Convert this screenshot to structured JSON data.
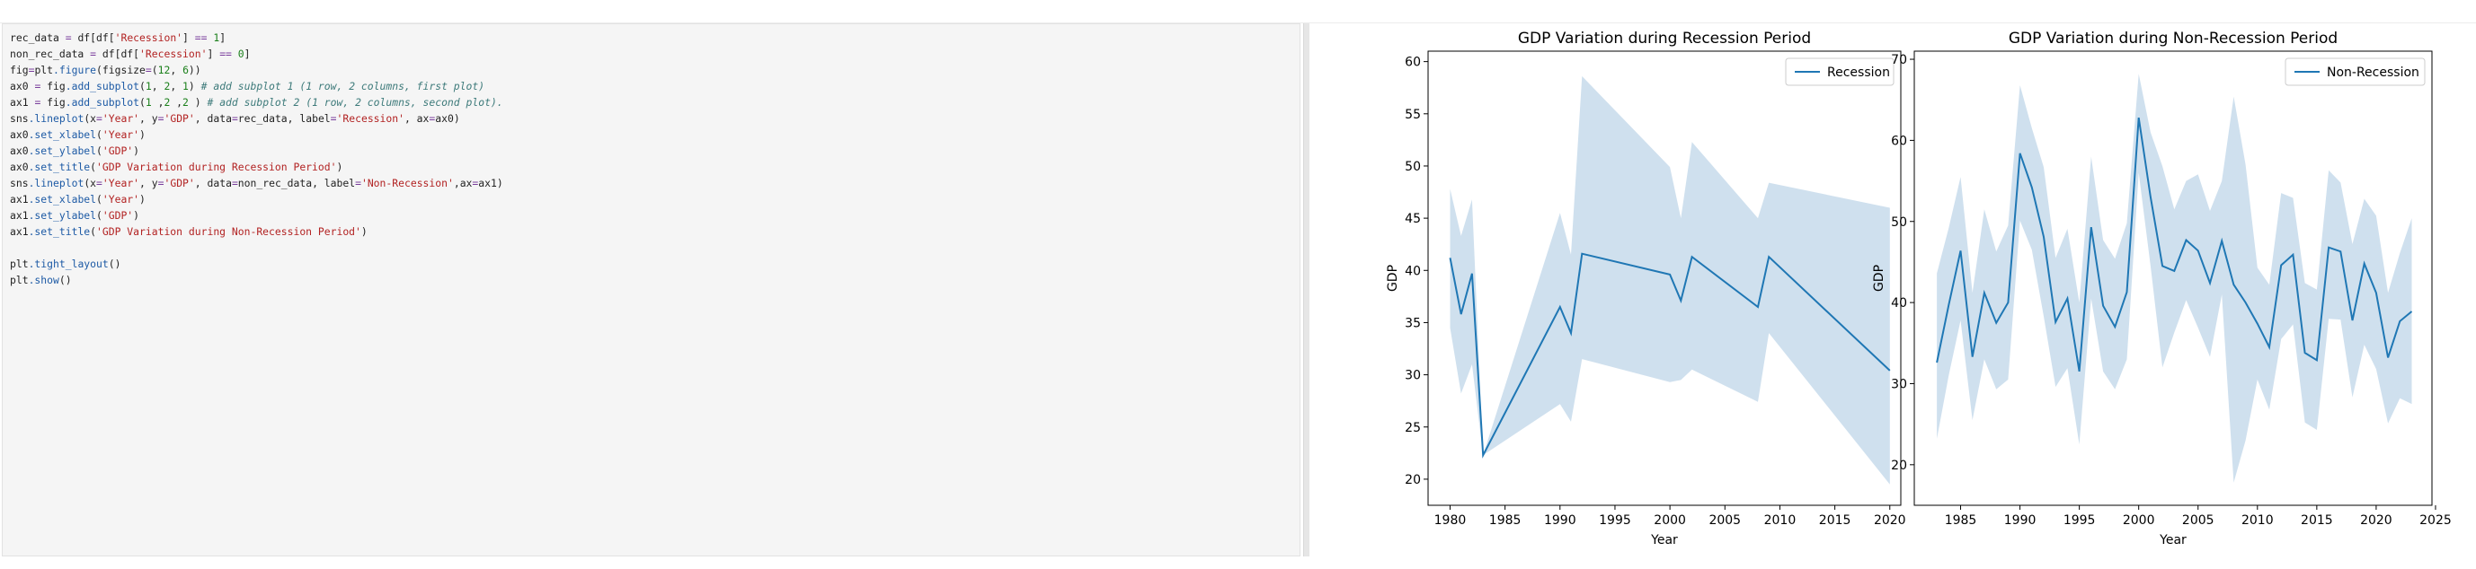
{
  "code": {
    "lines": [
      [
        {
          "t": "rec_data "
        },
        {
          "t": "=",
          "c": "tk-op"
        },
        {
          "t": " df[df["
        },
        {
          "t": "'Recession'",
          "c": "tk-str"
        },
        {
          "t": "] "
        },
        {
          "t": "==",
          "c": "tk-op"
        },
        {
          "t": " "
        },
        {
          "t": "1",
          "c": "tk-num"
        },
        {
          "t": "]"
        }
      ],
      [
        {
          "t": "non_rec_data "
        },
        {
          "t": "=",
          "c": "tk-op"
        },
        {
          "t": " df[df["
        },
        {
          "t": "'Recession'",
          "c": "tk-str"
        },
        {
          "t": "] "
        },
        {
          "t": "==",
          "c": "tk-op"
        },
        {
          "t": " "
        },
        {
          "t": "0",
          "c": "tk-num"
        },
        {
          "t": "]"
        }
      ],
      [
        {
          "t": "fig"
        },
        {
          "t": "=",
          "c": "tk-op"
        },
        {
          "t": "plt"
        },
        {
          "t": ".figure",
          "c": "tk-fn"
        },
        {
          "t": "(figsize"
        },
        {
          "t": "=",
          "c": "tk-op"
        },
        {
          "t": "("
        },
        {
          "t": "12",
          "c": "tk-num"
        },
        {
          "t": ", "
        },
        {
          "t": "6",
          "c": "tk-num"
        },
        {
          "t": "))"
        }
      ],
      [
        {
          "t": "ax0 "
        },
        {
          "t": "=",
          "c": "tk-op"
        },
        {
          "t": " fig"
        },
        {
          "t": ".add_subplot",
          "c": "tk-fn"
        },
        {
          "t": "("
        },
        {
          "t": "1",
          "c": "tk-num"
        },
        {
          "t": ", "
        },
        {
          "t": "2",
          "c": "tk-num"
        },
        {
          "t": ", "
        },
        {
          "t": "1",
          "c": "tk-num"
        },
        {
          "t": ") "
        },
        {
          "t": "# add subplot 1 (1 row, 2 columns, first plot)",
          "c": "tk-cmt"
        }
      ],
      [
        {
          "t": "ax1 "
        },
        {
          "t": "=",
          "c": "tk-op"
        },
        {
          "t": " fig"
        },
        {
          "t": ".add_subplot",
          "c": "tk-fn"
        },
        {
          "t": "("
        },
        {
          "t": "1",
          "c": "tk-num"
        },
        {
          "t": " ,"
        },
        {
          "t": "2",
          "c": "tk-num"
        },
        {
          "t": " ,"
        },
        {
          "t": "2",
          "c": "tk-num"
        },
        {
          "t": " ) "
        },
        {
          "t": "# add subplot 2 (1 row, 2 columns, second plot).",
          "c": "tk-cmt"
        }
      ],
      [
        {
          "t": "sns"
        },
        {
          "t": ".lineplot",
          "c": "tk-fn"
        },
        {
          "t": "(x"
        },
        {
          "t": "=",
          "c": "tk-op"
        },
        {
          "t": "'Year'",
          "c": "tk-str"
        },
        {
          "t": ", y"
        },
        {
          "t": "=",
          "c": "tk-op"
        },
        {
          "t": "'GDP'",
          "c": "tk-str"
        },
        {
          "t": ", data"
        },
        {
          "t": "=",
          "c": "tk-op"
        },
        {
          "t": "rec_data, label"
        },
        {
          "t": "=",
          "c": "tk-op"
        },
        {
          "t": "'Recession'",
          "c": "tk-str"
        },
        {
          "t": ", ax"
        },
        {
          "t": "=",
          "c": "tk-op"
        },
        {
          "t": "ax0)"
        }
      ],
      [
        {
          "t": "ax0"
        },
        {
          "t": ".set_xlabel",
          "c": "tk-fn"
        },
        {
          "t": "("
        },
        {
          "t": "'Year'",
          "c": "tk-str"
        },
        {
          "t": ")"
        }
      ],
      [
        {
          "t": "ax0"
        },
        {
          "t": ".set_ylabel",
          "c": "tk-fn"
        },
        {
          "t": "("
        },
        {
          "t": "'GDP'",
          "c": "tk-str"
        },
        {
          "t": ")"
        }
      ],
      [
        {
          "t": "ax0"
        },
        {
          "t": ".set_title",
          "c": "tk-fn"
        },
        {
          "t": "("
        },
        {
          "t": "'GDP Variation during Recession Period'",
          "c": "tk-str"
        },
        {
          "t": ")"
        }
      ],
      [
        {
          "t": "sns"
        },
        {
          "t": ".lineplot",
          "c": "tk-fn"
        },
        {
          "t": "(x"
        },
        {
          "t": "=",
          "c": "tk-op"
        },
        {
          "t": "'Year'",
          "c": "tk-str"
        },
        {
          "t": ", y"
        },
        {
          "t": "=",
          "c": "tk-op"
        },
        {
          "t": "'GDP'",
          "c": "tk-str"
        },
        {
          "t": ", data"
        },
        {
          "t": "=",
          "c": "tk-op"
        },
        {
          "t": "non_rec_data, label"
        },
        {
          "t": "=",
          "c": "tk-op"
        },
        {
          "t": "'Non-Recession'",
          "c": "tk-str"
        },
        {
          "t": ",ax"
        },
        {
          "t": "=",
          "c": "tk-op"
        },
        {
          "t": "ax1)"
        }
      ],
      [
        {
          "t": "ax1"
        },
        {
          "t": ".set_xlabel",
          "c": "tk-fn"
        },
        {
          "t": "("
        },
        {
          "t": "'Year'",
          "c": "tk-str"
        },
        {
          "t": ")"
        }
      ],
      [
        {
          "t": "ax1"
        },
        {
          "t": ".set_ylabel",
          "c": "tk-fn"
        },
        {
          "t": "("
        },
        {
          "t": "'GDP'",
          "c": "tk-str"
        },
        {
          "t": ")"
        }
      ],
      [
        {
          "t": "ax1"
        },
        {
          "t": ".set_title",
          "c": "tk-fn"
        },
        {
          "t": "("
        },
        {
          "t": "'GDP Variation during Non-Recession Period'",
          "c": "tk-str"
        },
        {
          "t": ")"
        }
      ],
      [],
      [
        {
          "t": "plt"
        },
        {
          "t": ".tight_layout",
          "c": "tk-fn"
        },
        {
          "t": "()"
        }
      ],
      [
        {
          "t": "plt"
        },
        {
          "t": ".show",
          "c": "tk-fn"
        },
        {
          "t": "()"
        }
      ]
    ]
  },
  "colors": {
    "line": "#1f77b4",
    "band": "#cfe0ee"
  },
  "chart_data": [
    {
      "type": "line",
      "title": "GDP Variation during Recession Period",
      "xlabel": "Year",
      "ylabel": "GDP",
      "xlim": [
        1978,
        2021
      ],
      "ylim": [
        17.5,
        61
      ],
      "xticks": [
        1980,
        1985,
        1990,
        1995,
        2000,
        2005,
        2010,
        2015,
        2020
      ],
      "yticks": [
        20,
        25,
        30,
        35,
        40,
        45,
        50,
        55,
        60
      ],
      "legend": "top-right",
      "grid": false,
      "series": [
        {
          "name": "Recession",
          "x": [
            1980,
            1981,
            1982,
            1983,
            1990,
            1991,
            1992,
            2000,
            2001,
            2002,
            2008,
            2009,
            2020
          ],
          "y": [
            41.2,
            35.8,
            39.7,
            22.3,
            36.5,
            34.0,
            41.6,
            39.6,
            37.1,
            41.3,
            36.5,
            41.3,
            30.4
          ],
          "lower": [
            34.5,
            28.2,
            31.0,
            22.3,
            27.2,
            25.5,
            31.5,
            29.3,
            29.5,
            30.5,
            27.4,
            34.0,
            19.5
          ],
          "upper": [
            47.8,
            43.3,
            46.8,
            22.3,
            45.5,
            41.5,
            58.6,
            49.9,
            45.0,
            52.3,
            45.0,
            48.4,
            46.0
          ]
        }
      ]
    },
    {
      "type": "line",
      "title": "GDP Variation during Non-Recession Period",
      "xlabel": "Year",
      "ylabel": "GDP",
      "xlim": [
        1981.1,
        2024.7
      ],
      "ylim": [
        15,
        71
      ],
      "xticks": [
        1985,
        1990,
        1995,
        2000,
        2005,
        2010,
        2015,
        2020,
        2025
      ],
      "yticks": [
        20,
        30,
        40,
        50,
        60,
        70
      ],
      "legend": "top-right",
      "grid": false,
      "series": [
        {
          "name": "Non-Recession",
          "x": [
            1983,
            1984,
            1985,
            1986,
            1987,
            1988,
            1989,
            1990,
            1991,
            1992,
            1993,
            1994,
            1995,
            1996,
            1997,
            1998,
            1999,
            2000,
            2001,
            2002,
            2003,
            2004,
            2005,
            2006,
            2007,
            2008,
            2009,
            2010,
            2011,
            2012,
            2013,
            2014,
            2015,
            2016,
            2017,
            2018,
            2019,
            2020,
            2021,
            2022,
            2023
          ],
          "y": [
            32.6,
            39.7,
            46.4,
            33.3,
            41.2,
            37.5,
            40.0,
            58.4,
            54.2,
            48.1,
            37.6,
            40.5,
            31.5,
            49.3,
            39.6,
            37.0,
            41.3,
            62.8,
            53.0,
            44.5,
            43.9,
            47.7,
            46.4,
            42.4,
            47.6,
            42.2,
            40.0,
            37.4,
            34.5,
            44.6,
            45.9,
            33.8,
            32.9,
            46.8,
            46.3,
            37.8,
            44.8,
            41.2,
            33.2,
            37.7,
            38.9
          ],
          "lower": [
            23.2,
            31.0,
            37.8,
            25.5,
            33.0,
            29.3,
            30.5,
            50.1,
            46.5,
            38.3,
            29.6,
            31.9,
            22.5,
            40.5,
            31.5,
            29.3,
            33.0,
            56.0,
            44.5,
            32.0,
            36.3,
            40.3,
            36.9,
            33.3,
            41.0,
            17.8,
            23.0,
            30.5,
            26.8,
            35.5,
            37.3,
            25.2,
            24.3,
            38.0,
            37.9,
            28.3,
            34.8,
            31.8,
            25.1,
            28.2,
            27.5
          ],
          "upper": [
            43.6,
            49.2,
            55.5,
            41.2,
            51.5,
            46.3,
            49.5,
            66.8,
            61.5,
            56.7,
            45.5,
            49.1,
            40.0,
            58.0,
            47.7,
            45.4,
            49.8,
            68.2,
            61.0,
            56.8,
            51.5,
            55.0,
            55.8,
            51.3,
            55.0,
            65.4,
            57.0,
            44.3,
            42.2,
            53.5,
            52.9,
            42.4,
            41.6,
            56.3,
            54.8,
            47.2,
            52.8,
            50.7,
            41.2,
            46.1,
            50.4
          ]
        }
      ]
    }
  ]
}
